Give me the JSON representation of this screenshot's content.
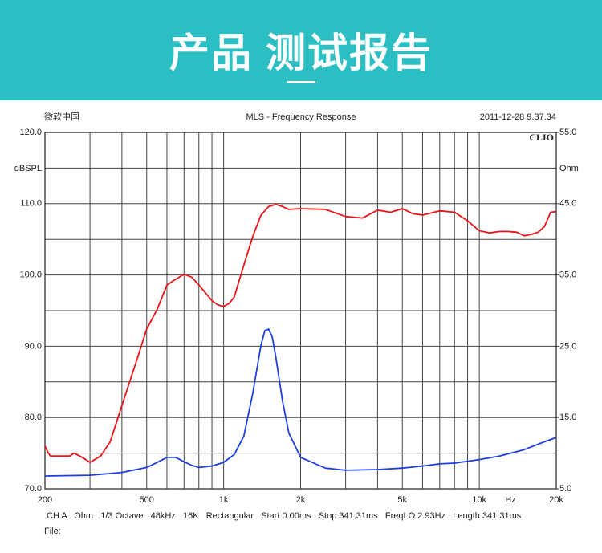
{
  "banner": {
    "title": "产品 测试报告"
  },
  "chart_data": {
    "type": "line",
    "header_left": "微软中国",
    "title": "MLS - Frequency Response",
    "header_right": "2011-12-28 9.37.34",
    "brand": "CLIO",
    "ylabel": "dBSPL",
    "y2label": "Ohm",
    "x_unit": "Hz",
    "footer": "CH A   Ohm   1/3 Octave   48kHz   16K   Rectangular   Start 0.00ms   Stop 341.31ms   FreqLO 2.93Hz   Length 341.31ms",
    "file_label": "File:",
    "xscale": "log",
    "xlim": [
      200,
      20000
    ],
    "xticks": [
      200,
      500,
      {
        "value": 1000,
        "label": "1k"
      },
      {
        "value": 2000,
        "label": "2k"
      },
      {
        "value": 5000,
        "label": "5k"
      },
      {
        "value": 10000,
        "label": "10k"
      },
      {
        "value": 20000,
        "label": "20k"
      }
    ],
    "xticks_minor": [
      300,
      400,
      600,
      700,
      800,
      900,
      3000,
      4000,
      6000,
      7000,
      8000,
      9000
    ],
    "ylim": [
      70,
      120
    ],
    "yticks": [
      {
        "value": 70,
        "label": "70.0"
      },
      {
        "value": 80,
        "label": "80.0"
      },
      {
        "value": 90,
        "label": "90.0"
      },
      {
        "value": 100,
        "label": "100.0"
      },
      {
        "value": 110,
        "label": "110.0"
      },
      {
        "value": 120,
        "label": "120.0"
      }
    ],
    "yticks_minor": [
      75,
      85,
      95,
      105,
      115
    ],
    "y2lim": [
      5,
      55
    ],
    "y2ticks": [
      {
        "value": 5,
        "label": "5.0"
      },
      {
        "value": 15,
        "label": "15.0"
      },
      {
        "value": 25,
        "label": "25.0"
      },
      {
        "value": 35,
        "label": "35.0"
      },
      {
        "value": 45,
        "label": "45.0"
      },
      {
        "value": 55,
        "label": "55.0"
      }
    ],
    "grid": true,
    "series": [
      {
        "color": "#e8141a",
        "axis": "y",
        "x": [
          200,
          205,
          210,
          250,
          260,
          280,
          300,
          330,
          360,
          400,
          450,
          500,
          550,
          600,
          650,
          700,
          750,
          800,
          900,
          950,
          1000,
          1050,
          1100,
          1200,
          1300,
          1400,
          1500,
          1600,
          1700,
          1800,
          2000,
          2500,
          3000,
          3500,
          4000,
          4500,
          5000,
          5500,
          6000,
          7000,
          8000,
          9000,
          10000,
          11000,
          12000,
          13000,
          14000,
          15000,
          16000,
          17000,
          18000,
          19000,
          20000
        ],
        "values": [
          76.0,
          75.2,
          74.6,
          74.6,
          75.0,
          74.4,
          73.7,
          74.6,
          76.6,
          81.7,
          87.3,
          92.4,
          95.2,
          98.6,
          99.4,
          100.1,
          99.7,
          98.6,
          96.4,
          95.8,
          95.6,
          96.0,
          96.9,
          101.4,
          105.4,
          108.4,
          109.6,
          109.9,
          109.6,
          109.2,
          109.3,
          109.2,
          108.2,
          108.0,
          109.1,
          108.8,
          109.3,
          108.6,
          108.4,
          109.0,
          108.8,
          107.6,
          106.2,
          105.9,
          106.1,
          106.1,
          106.0,
          105.5,
          105.7,
          106.0,
          106.8,
          108.8,
          108.9
        ]
      },
      {
        "color": "#1f3ee0",
        "axis": "y2",
        "x": [
          200,
          300,
          400,
          500,
          550,
          600,
          650,
          700,
          750,
          800,
          900,
          1000,
          1100,
          1200,
          1300,
          1400,
          1450,
          1500,
          1550,
          1600,
          1700,
          1800,
          2000,
          2500,
          3000,
          4000,
          5000,
          6000,
          7000,
          8000,
          10000,
          12000,
          15000,
          18000,
          20000
        ],
        "values": [
          6.8,
          6.9,
          7.3,
          8.0,
          8.7,
          9.4,
          9.4,
          8.8,
          8.3,
          8.0,
          8.2,
          8.7,
          9.8,
          12.4,
          18.4,
          25.2,
          27.2,
          27.4,
          26.3,
          23.5,
          17.3,
          12.8,
          9.4,
          7.9,
          7.6,
          7.7,
          7.9,
          8.2,
          8.5,
          8.6,
          9.1,
          9.6,
          10.5,
          11.6,
          12.2
        ]
      }
    ]
  }
}
